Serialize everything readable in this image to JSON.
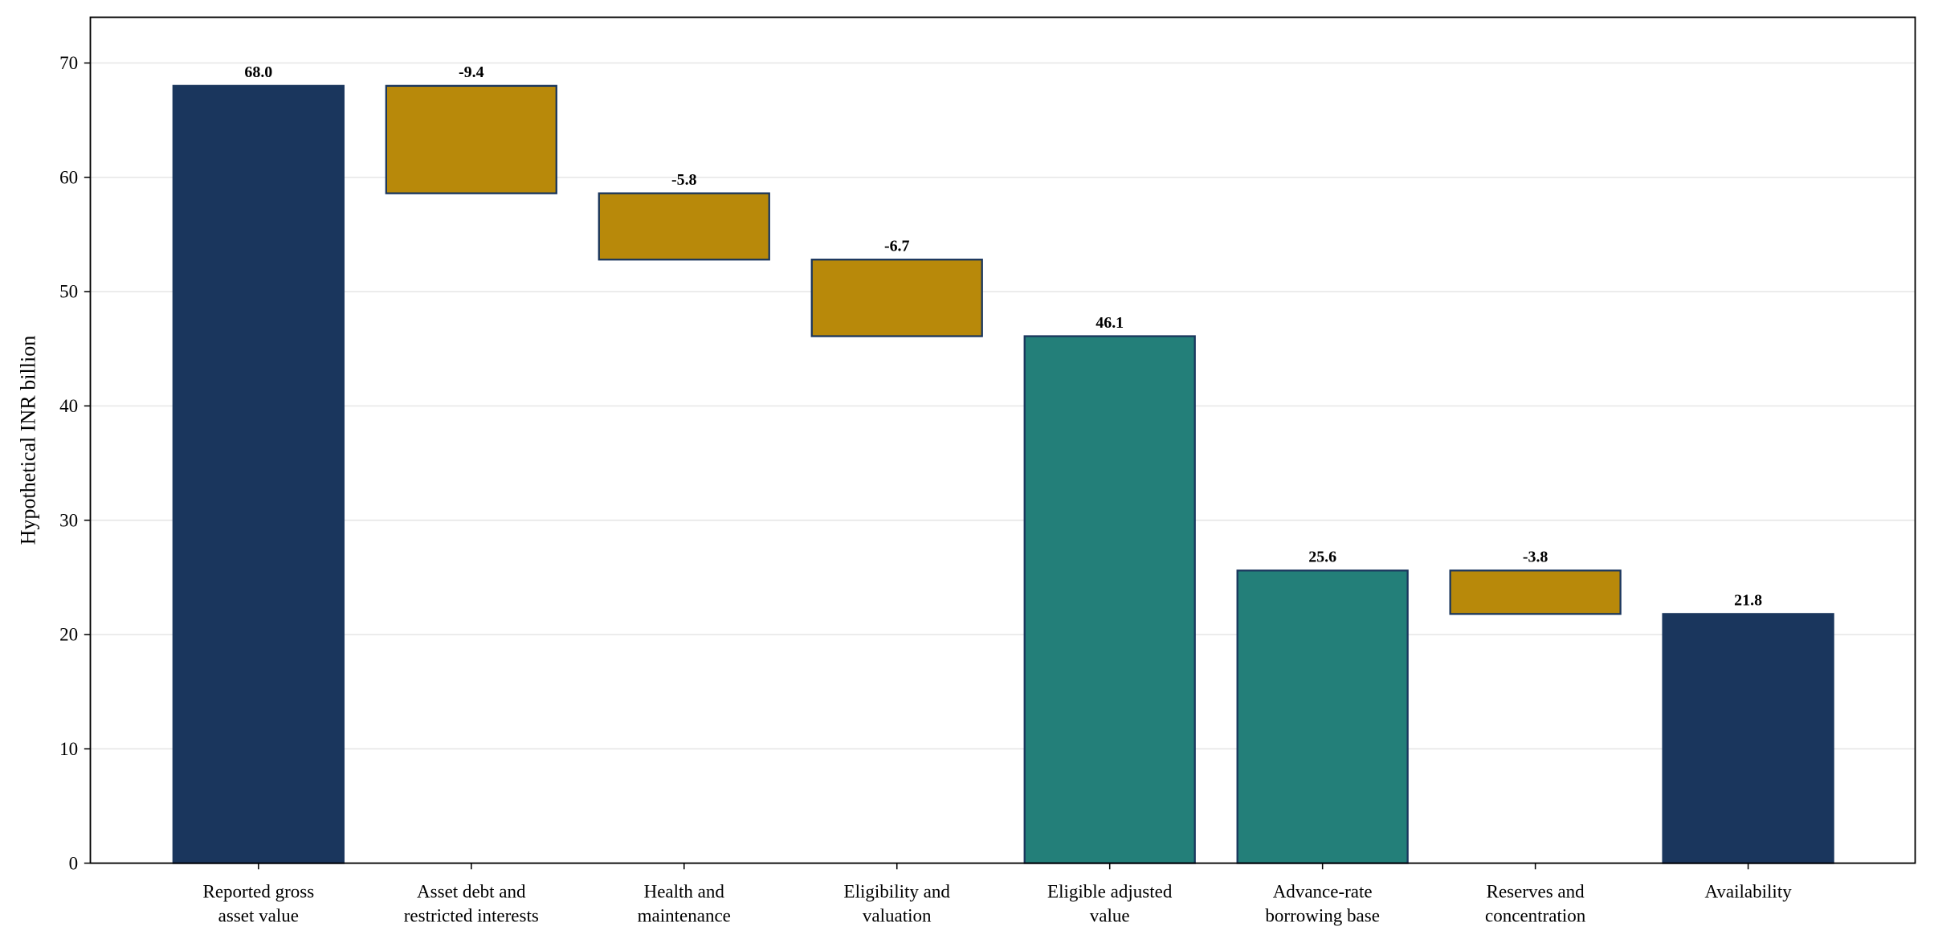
{
  "chart_data": {
    "type": "waterfall",
    "y_label": "Hypothetical INR billion",
    "categories": [
      "Reported gross\nasset value",
      "Asset debt and\nrestricted interests",
      "Health and\nmaintenance",
      "Eligibility and\nvaluation",
      "Eligible adjusted\nvalue",
      "Advance-rate\nborrowing base",
      "Reserves and\nconcentration",
      "Availability"
    ],
    "values": [
      68.0,
      -9.4,
      -5.8,
      -6.7,
      46.1,
      25.6,
      -3.8,
      21.8
    ],
    "value_labels": [
      "68.0",
      "-9.4",
      "-5.8",
      "-6.7",
      "46.1",
      "25.6",
      "-3.8",
      "21.8"
    ],
    "measures": [
      "absolute",
      "relative",
      "relative",
      "relative",
      "absolute",
      "absolute",
      "relative",
      "absolute"
    ],
    "colors": [
      "#1a365d",
      "#b8890a",
      "#b8890a",
      "#b8890a",
      "#237f79",
      "#237f79",
      "#b8890a",
      "#1a365d"
    ],
    "edge_color": "#1a365d",
    "ylim": [
      0,
      74
    ],
    "yticks": [
      0,
      10,
      20,
      30,
      40,
      50,
      60,
      70
    ],
    "grid": true
  }
}
